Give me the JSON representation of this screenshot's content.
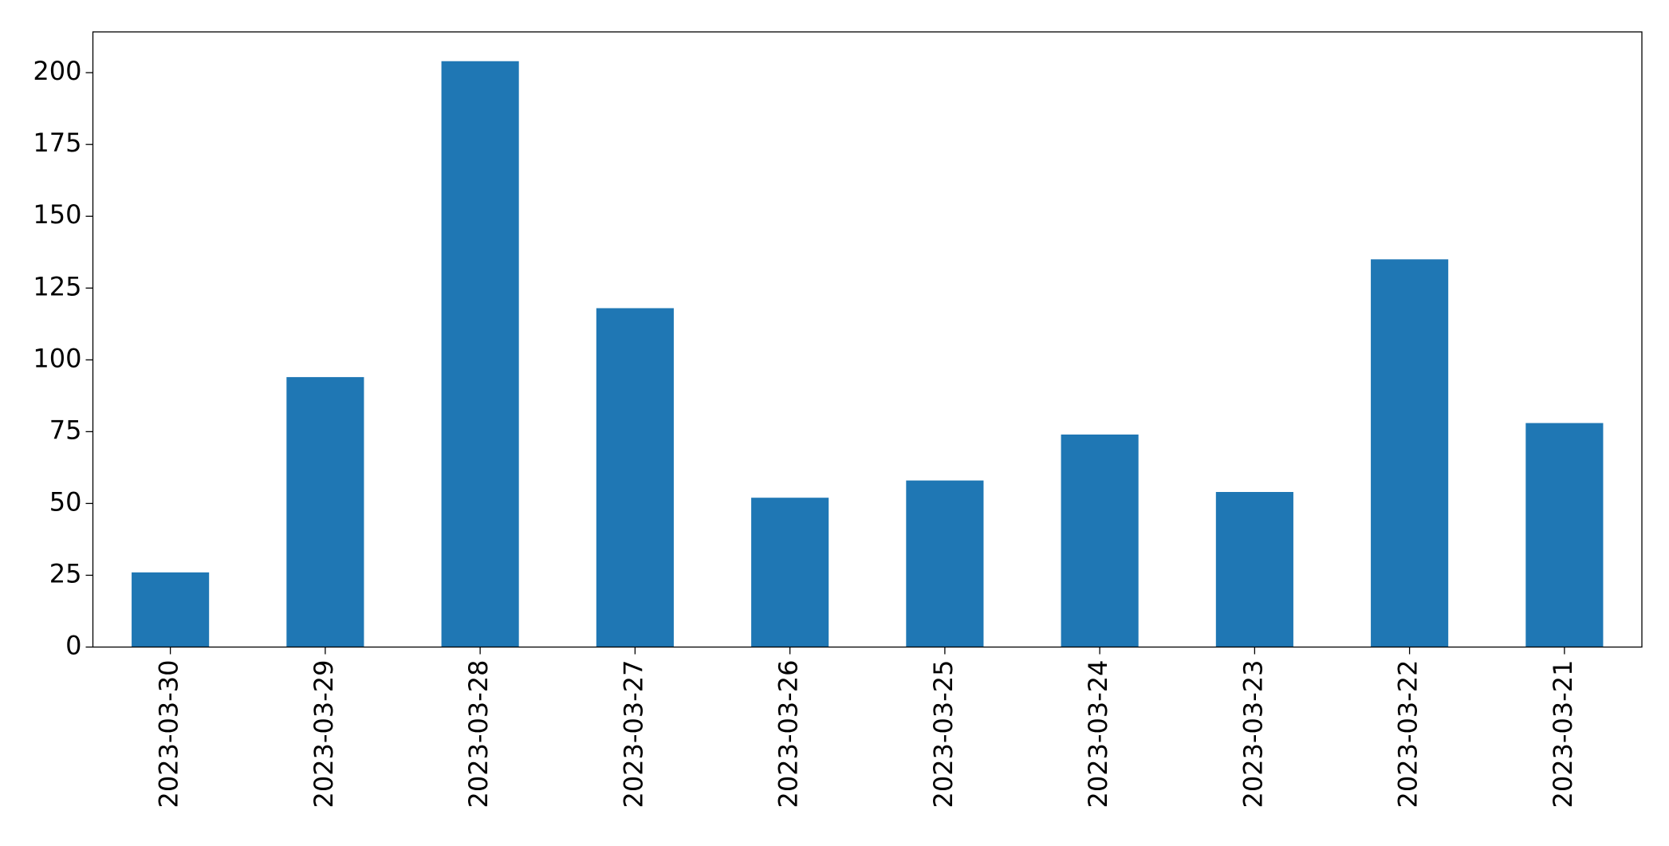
{
  "chart_data": {
    "type": "bar",
    "categories": [
      "2023-03-30",
      "2023-03-29",
      "2023-03-28",
      "2023-03-27",
      "2023-03-26",
      "2023-03-25",
      "2023-03-24",
      "2023-03-23",
      "2023-03-22",
      "2023-03-21"
    ],
    "values": [
      26,
      94,
      204,
      118,
      52,
      58,
      74,
      54,
      135,
      78
    ],
    "color": "#1f77b4",
    "ylim": [
      0,
      214.2
    ],
    "yticks": [
      0,
      25,
      50,
      75,
      100,
      125,
      150,
      175,
      200
    ],
    "grid": false
  }
}
